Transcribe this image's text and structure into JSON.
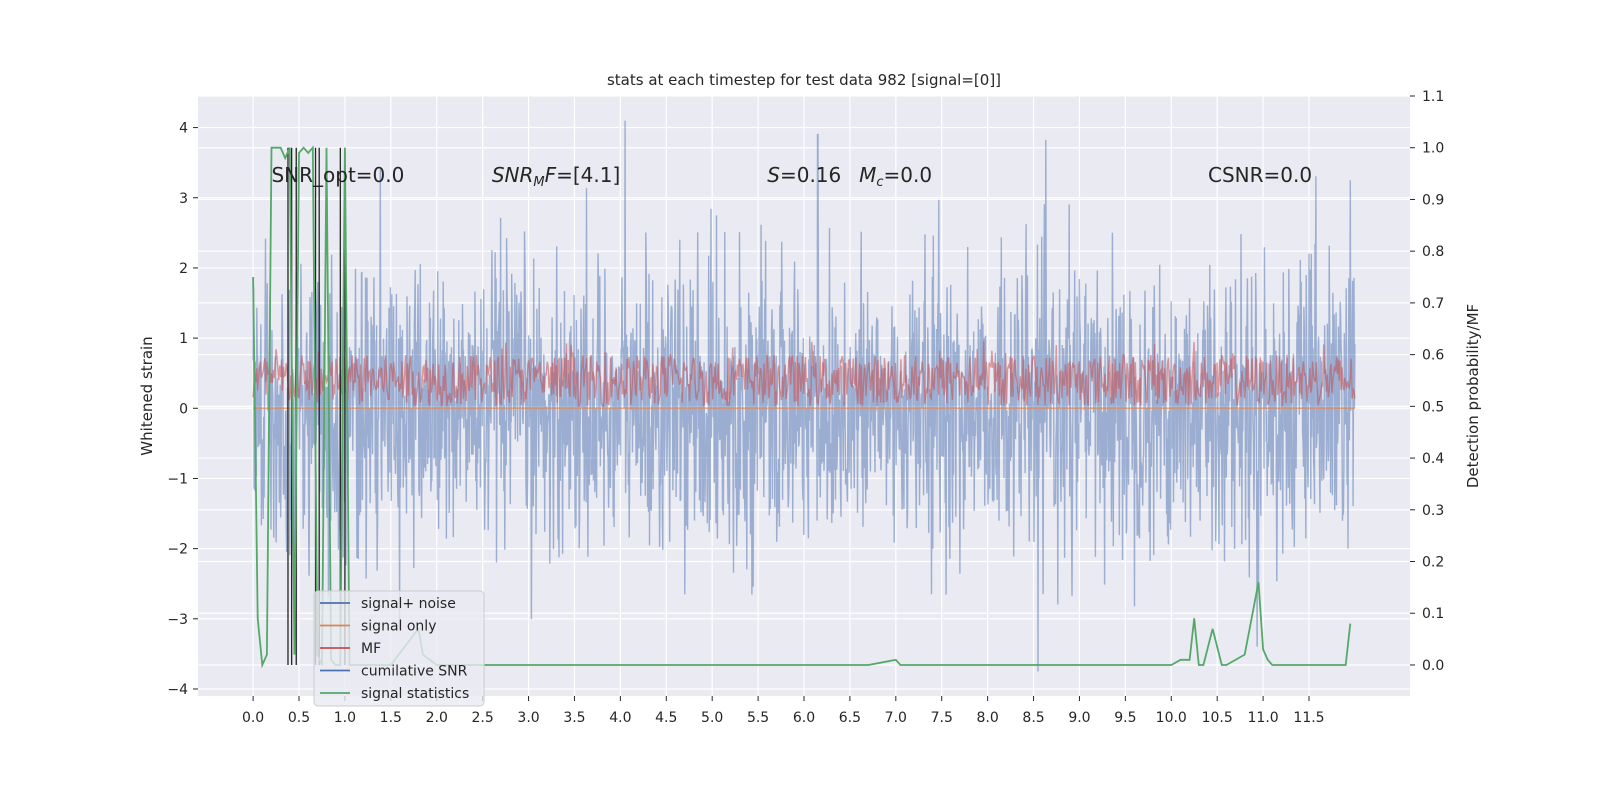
{
  "chart_data": {
    "type": "line",
    "title": "stats at each timestep for test data 982 [signal=[0]]",
    "ylabel": "Whitened strain",
    "y2label": "Detection probability/MF",
    "xlim": [
      -0.6,
      12.6
    ],
    "ylim": [
      -4.1,
      4.45
    ],
    "y2lim": [
      -0.06,
      1.1
    ],
    "x_ticks": [
      0.0,
      0.5,
      1.0,
      1.5,
      2.0,
      2.5,
      3.0,
      3.5,
      4.0,
      4.5,
      5.0,
      5.5,
      6.0,
      6.5,
      7.0,
      7.5,
      8.0,
      8.5,
      9.0,
      9.5,
      10.0,
      10.5,
      11.0,
      11.5
    ],
    "x_tick_labels": [
      "0.0",
      "0.5",
      "1.0",
      "1.5",
      "2.0",
      "2.5",
      "3.0",
      "3.5",
      "4.0",
      "4.5",
      "5.0",
      "5.5",
      "6.0",
      "6.5",
      "7.0",
      "7.5",
      "8.0",
      "8.5",
      "9.0",
      "9.5",
      "10.0",
      "10.5",
      "11.0",
      "11.5"
    ],
    "y_ticks": [
      4,
      3,
      2,
      1,
      0,
      -1,
      -2,
      -3,
      -4
    ],
    "y_tick_labels": [
      "4",
      "3",
      "2",
      "1",
      "0",
      "−1",
      "−2",
      "−3",
      "−4"
    ],
    "y2_ticks": [
      1.1,
      1.0,
      0.9,
      0.8,
      0.7,
      0.6,
      0.5,
      0.4,
      0.3,
      0.2,
      0.1,
      0.0
    ],
    "y2_tick_labels": [
      "1.1",
      "1.0",
      "0.9",
      "0.8",
      "0.7",
      "0.6",
      "0.5",
      "0.4",
      "0.3",
      "0.2",
      "0.1",
      "0.0"
    ],
    "grid": true,
    "legend_position": "lower-left",
    "series": [
      {
        "name": "signal+ noise",
        "color": "#4c72b0",
        "axis": "left",
        "x_range": [
          0.0,
          12.0
        ],
        "amplitude_std": 1.0,
        "peaks": [
          [
            4.05,
            4.1
          ],
          [
            6.15,
            3.9
          ],
          [
            8.55,
            -3.75
          ],
          [
            11.95,
            3.25
          ]
        ]
      },
      {
        "name": "signal only",
        "color": "#dd8452",
        "axis": "left",
        "x": [
          0.0,
          12.0
        ],
        "y": [
          0.0,
          0.0
        ]
      },
      {
        "name": "MF",
        "color": "#c44e52",
        "axis": "right",
        "x_range": [
          0.0,
          12.0
        ],
        "y_band": [
          0.5,
          0.6
        ]
      },
      {
        "name": "cumilative SNR",
        "color": "#4c72b0",
        "axis": "right",
        "x": [],
        "y": []
      },
      {
        "name": "signal statistics",
        "color": "#55a868",
        "axis": "right",
        "x": [
          0.0,
          0.05,
          0.1,
          0.15,
          0.2,
          0.25,
          0.3,
          0.35,
          0.4,
          0.45,
          0.5,
          0.55,
          0.6,
          0.65,
          0.7,
          0.75,
          0.8,
          0.85,
          0.9,
          0.95,
          1.0,
          1.05,
          1.1,
          1.2,
          1.5,
          1.8,
          1.85,
          2.0,
          4.8,
          4.9,
          6.5,
          6.7,
          7.0,
          7.05,
          7.1,
          7.5,
          10.0,
          10.1,
          10.2,
          10.25,
          10.3,
          10.35,
          10.45,
          10.55,
          10.6,
          10.8,
          10.95,
          11.0,
          11.05,
          11.1,
          11.2,
          11.5,
          11.9,
          11.95
        ],
        "y": [
          0.75,
          0.09,
          0.0,
          0.02,
          1.0,
          1.0,
          1.0,
          0.98,
          1.0,
          0.02,
          0.99,
          1.0,
          0.99,
          1.0,
          0.02,
          0.0,
          1.0,
          0.01,
          0.0,
          0.0,
          1.0,
          0.0,
          0.0,
          0.0,
          0.0,
          0.07,
          0.02,
          0.0,
          0.0,
          0.0,
          0.0,
          0.0,
          0.01,
          0.0,
          0.0,
          0.0,
          0.0,
          0.01,
          0.01,
          0.09,
          0.0,
          0.0,
          0.07,
          0.0,
          0.0,
          0.02,
          0.16,
          0.03,
          0.01,
          0.0,
          0.0,
          0.0,
          0.0,
          0.08
        ]
      },
      {
        "name": "",
        "color": "#262626",
        "axis": "right",
        "type": "vlines",
        "x": [
          0.38,
          0.42,
          0.47,
          0.68,
          0.72,
          0.95,
          1.0
        ],
        "y0": 0.0,
        "y1": 1.0
      }
    ],
    "annotations": [
      {
        "text": "SNR_opt=0.0",
        "x": 0.2,
        "y": 3.25
      },
      {
        "text": "SNR_MF=[4.1]",
        "x": 2.6,
        "y": 3.25
      },
      {
        "text": "S=0.16",
        "x": 5.6,
        "y": 3.25
      },
      {
        "text": "M_c=0.0",
        "x": 6.6,
        "y": 3.25
      },
      {
        "text": "CSNR=0.0",
        "x": 10.4,
        "y": 3.25
      }
    ]
  }
}
